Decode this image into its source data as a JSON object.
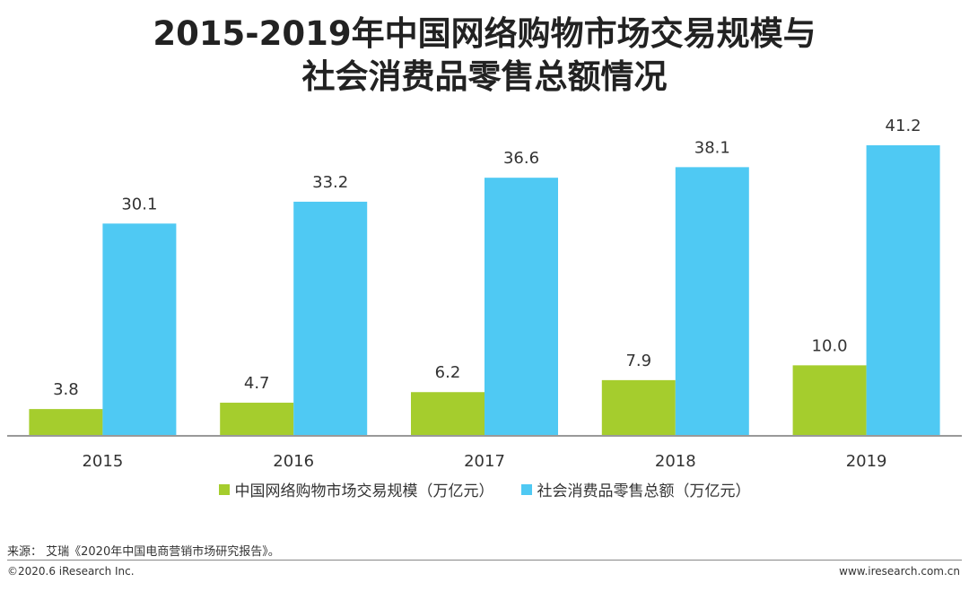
{
  "title": {
    "line1": "2015-2019年中国网络购物市场交易规模与",
    "line2": "社会消费品零售总额情况"
  },
  "chart_data": {
    "type": "bar",
    "categories": [
      "2015",
      "2016",
      "2017",
      "2018",
      "2019"
    ],
    "series": [
      {
        "name": "中国网络购物市场交易规模（万亿元）",
        "color": "#a5cd2d",
        "values": [
          3.8,
          4.7,
          6.2,
          7.9,
          10.0
        ],
        "labels": [
          "3.8",
          "4.7",
          "6.2",
          "7.9",
          "10.0"
        ]
      },
      {
        "name": "社会消费品零售总额（万亿元）",
        "color": "#4fc9f3",
        "values": [
          30.1,
          33.2,
          36.6,
          38.1,
          41.2
        ],
        "labels": [
          "30.1",
          "33.2",
          "36.6",
          "38.1",
          "41.2"
        ]
      }
    ],
    "ylim": [
      0,
      42
    ],
    "grid": false,
    "legend_position": "bottom"
  },
  "source": "来源：  艾瑞《2020年中国电商营销市场研究报告》。",
  "footer": {
    "copyright": "©2020.6 iResearch Inc.",
    "website": "www.iresearch.com.cn"
  }
}
